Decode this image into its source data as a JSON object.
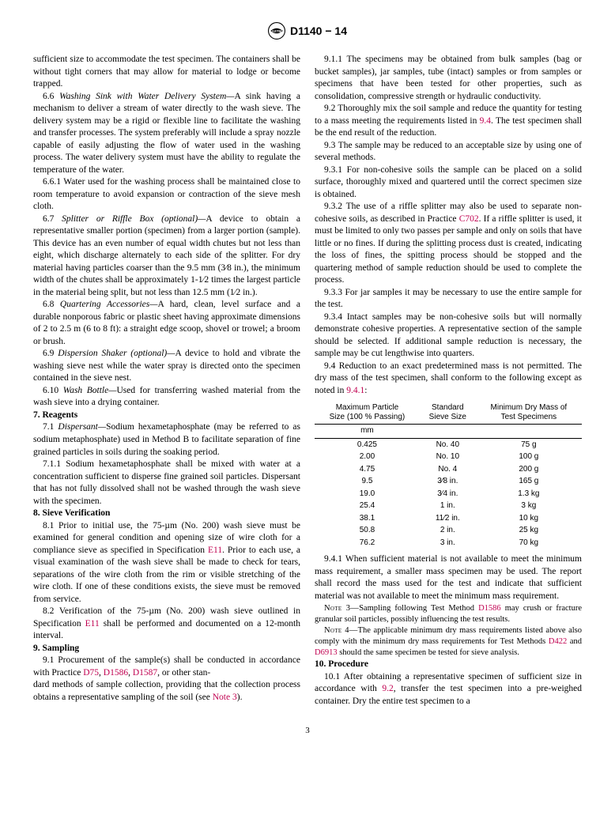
{
  "header": {
    "doc_id": "D1140 − 14"
  },
  "col1": {
    "p0": "sufficient size to accommodate the test specimen. The containers shall be without tight corners that may allow for material to lodge or become trapped.",
    "p66_lead": "6.6 ",
    "p66_title": "Washing Sink with Water Delivery System—",
    "p66_body": "A sink having a mechanism to deliver a stream of water directly to the wash sieve. The delivery system may be a rigid or flexible line to facilitate the washing and transfer processes. The system preferably will include a spray nozzle capable of easily adjusting the flow of water used in the washing process. The water delivery system must have the ability to regulate the temperature of the water.",
    "p661": "6.6.1 Water used for the washing process shall be maintained close to room temperature to avoid expansion or contraction of the sieve mesh cloth.",
    "p67_lead": "6.7 ",
    "p67_title": "Splitter or Riffle Box (optional)—",
    "p67_body": "A device to obtain a representative smaller portion (specimen) from a larger portion (sample). This device has an even number of equal width chutes but not less than eight, which discharge alternately to each side of the splitter. For dry material having particles coarser than the 9.5 mm (3⁄8 in.), the minimum width of the chutes shall be approximately 1-1⁄2 times the largest particle in the material being split, but not less than 12.5 mm (1⁄2 in.).",
    "p68_lead": "6.8 ",
    "p68_title": "Quartering Accessories—",
    "p68_body": "A hard, clean, level surface and a durable nonporous fabric or plastic sheet having approximate dimensions of 2 to 2.5 m (6 to 8 ft): a straight edge scoop, shovel or trowel; a broom or brush.",
    "p69_lead": "6.9 ",
    "p69_title": "Dispersion Shaker (optional)—",
    "p69_body": "A device to hold and vibrate the washing sieve nest while the water spray is directed onto the specimen contained in the sieve nest.",
    "p610_lead": "6.10 ",
    "p610_title": "Wash Bottle—",
    "p610_body": "Used for transferring washed material from the wash sieve into a drying container.",
    "s7_title": "7. Reagents",
    "p71_lead": "7.1 ",
    "p71_title": "Dispersant—",
    "p71_body": "Sodium hexametaphosphate (may be referred to as sodium metaphosphate) used in Method B to facilitate separation of fine grained particles in soils during the soaking period.",
    "p711": "7.1.1 Sodium hexametaphosphate shall be mixed with water at a concentration sufficient to disperse fine grained soil particles. Dispersant that has not fully dissolved shall not be washed through the wash sieve with the specimen.",
    "s8_title": "8. Sieve Verification",
    "p81a": "8.1 Prior to initial use, the 75-µm (No. 200) wash sieve must be examined for general condition and opening size of wire cloth for a compliance sieve as specified in Specification ",
    "p81_ref": "E11",
    "p81b": ". Prior to each use, a visual examination of the wash sieve shall be made to check for tears, separations of the wire cloth from the rim or visible stretching of the wire cloth. If one of these conditions exists, the sieve must be removed from service.",
    "p82a": "8.2 Verification of the 75-µm (No. 200) wash sieve outlined in Specification ",
    "p82_ref": "E11",
    "p82b": " shall be performed and documented on a 12-month interval.",
    "s9_title": "9. Sampling",
    "p91a": "9.1 Procurement of the sample(s) shall be conducted in accordance with Practice ",
    "p91_ref1": "D75",
    "p91_sep1": ", ",
    "p91_ref2": "D1586",
    "p91_sep2": ", ",
    "p91_ref3": "D1587",
    "p91b": ", or other stan-"
  },
  "col2": {
    "p91c": "dard methods of sample collection, providing that the collection process obtains a representative sampling of the soil (see ",
    "p91_ref_note": "Note 3",
    "p91d": ").",
    "p911": "9.1.1 The specimens may be obtained from bulk samples (bag or bucket samples), jar samples, tube (intact) samples or from samples or specimens that have been tested for other properties, such as consolidation, compressive strength or hydraulic conductivity.",
    "p92a": "9.2 Thoroughly mix the soil sample and reduce the quantity for testing to a mass meeting the requirements listed in ",
    "p92_ref": "9.4",
    "p92b": ". The test specimen shall be the end result of the reduction.",
    "p93": "9.3 The sample may be reduced to an acceptable size by using one of several methods.",
    "p931": "9.3.1 For non-cohesive soils the sample can be placed on a solid surface, thoroughly mixed and quartered until the correct specimen size is obtained.",
    "p932a": "9.3.2 The use of a riffle splitter may also be used to separate non-cohesive soils, as described in Practice ",
    "p932_ref": "C702",
    "p932b": ". If a riffle splitter is used, it must be limited to only two passes per sample and only on soils that have little or no fines. If during the splitting process dust is created, indicating the loss of fines, the spitting process should be stopped and the quartering method of sample reduction should be used to complete the process.",
    "p933": "9.3.3 For jar samples it may be necessary to use the entire sample for the test.",
    "p934": "9.3.4 Intact samples may be non-cohesive soils but will normally demonstrate cohesive properties. A representative section of the sample should be selected. If additional sample reduction is necessary, the sample may be cut lengthwise into quarters.",
    "p94a": "9.4 Reduction to an exact predetermined mass is not permitted. The dry mass of the test specimen, shall conform to the following except as noted in ",
    "p94_ref": "9.4.1",
    "p94b": ":",
    "table": {
      "h1a": "Maximum Particle",
      "h1b": "Size (100 % Passing)",
      "h2a": "Standard",
      "h2b": "Sieve Size",
      "h3a": "Minimum Dry Mass of",
      "h3b": "Test Specimens",
      "sub1": "mm",
      "rows": [
        {
          "c1": "0.425",
          "c2": "No. 40",
          "c3": "75 g"
        },
        {
          "c1": "2.00",
          "c2": "No. 10",
          "c3": "100 g"
        },
        {
          "c1": "4.75",
          "c2": "No. 4",
          "c3": "200 g"
        },
        {
          "c1": "9.5",
          "c2": "3⁄8 in.",
          "c3": "165 g"
        },
        {
          "c1": "19.0",
          "c2": "3⁄4 in.",
          "c3": "1.3 kg"
        },
        {
          "c1": "25.4",
          "c2": "1 in.",
          "c3": "3 kg"
        },
        {
          "c1": "38.1",
          "c2": "11⁄2 in.",
          "c3": "10 kg"
        },
        {
          "c1": "50.8",
          "c2": "2 in.",
          "c3": "25 kg"
        },
        {
          "c1": "76.2",
          "c2": "3 in.",
          "c3": "70 kg"
        }
      ]
    },
    "p941": "9.4.1 When sufficient material is not available to meet the minimum mass requirement, a smaller mass specimen may be used. The report shall record the mass used for the test and indicate that sufficient material was not available to meet the minimum mass requirement.",
    "note3_label": "Note 3—",
    "note3a": "Sampling following Test Method ",
    "note3_ref": "D1586",
    "note3b": " may crush or fracture granular soil particles, possibly influencing the test results.",
    "note4_label": "Note 4—",
    "note4a": "The applicable minimum dry mass requirements listed above also comply with the minimum dry mass requirements for Test Methods ",
    "note4_ref1": "D422",
    "note4_mid": " and ",
    "note4_ref2": "D6913",
    "note4b": " should the same specimen be tested for sieve analysis.",
    "s10_title": "10. Procedure",
    "p101a": "10.1 After obtaining a representative specimen of sufficient size in accordance with ",
    "p101_ref": "9.2",
    "p101b": ", transfer the test specimen into a pre-weighed container. Dry the entire test specimen to a"
  },
  "page_num": "3"
}
